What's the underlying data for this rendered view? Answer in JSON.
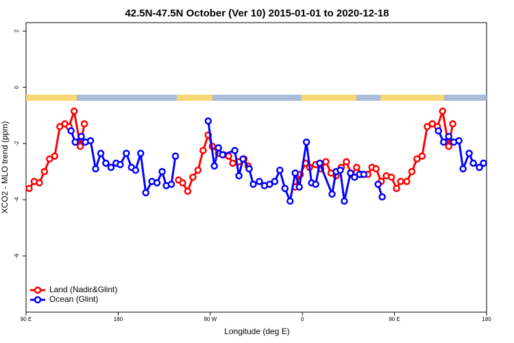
{
  "chart_data": {
    "type": "line",
    "title": "42.5N-47.5N October (Ver 10)   2015-01-01 to 2020-12-18",
    "x_label": "Longitude (deg E)",
    "y_label": "XCO2 - MLO trend (ppm)",
    "xlim": [
      90,
      540
    ],
    "ylim": [
      -8,
      2.3
    ],
    "xticks": [
      {
        "value": 90,
        "label": "90 E"
      },
      180,
      {
        "value": 270,
        "label": "90 W"
      },
      {
        "value": 360,
        "label": "0"
      },
      {
        "value": 450,
        "label": "90 E"
      },
      {
        "value": 540,
        "label": "180"
      }
    ],
    "yticks": [
      2,
      0,
      -2,
      -4,
      -6
    ],
    "legend": "bottom-left",
    "series": [
      {
        "name": "Land (Nadir&Glint)",
        "color": "#ff0000",
        "x": [
          93,
          98,
          103,
          108,
          113,
          118,
          123,
          128,
          132,
          137,
          143,
          147,
          null,
          239,
          243,
          248,
          253,
          258,
          263,
          268,
          272,
          278,
          283,
          288,
          292,
          298,
          303,
          307,
          null,
          353,
          358,
          363,
          367,
          373,
          378,
          383,
          388,
          393,
          398,
          403,
          408,
          413,
          418,
          424,
          428,
          432,
          437,
          442,
          447,
          452,
          456,
          462,
          467,
          472,
          477,
          482,
          487,
          492,
          497,
          503,
          507
        ],
        "values": [
          -3.6,
          -3.35,
          -3.4,
          -3.0,
          -2.55,
          -2.45,
          -1.4,
          -1.3,
          -1.4,
          -0.85,
          -2.1,
          -1.3,
          null,
          -3.3,
          -3.4,
          -3.7,
          -3.2,
          -2.95,
          -2.25,
          -1.7,
          -2.1,
          -2.35,
          -2.4,
          -2.45,
          -2.7,
          -2.65,
          -2.55,
          -2.8,
          null,
          -3.55,
          -3.1,
          -2.7,
          -2.85,
          -2.75,
          -2.9,
          -2.65,
          -3.05,
          -3.15,
          -2.85,
          -2.65,
          -3.1,
          -2.85,
          -3.1,
          -3.1,
          -2.85,
          -2.9,
          -3.35,
          -3.15,
          -3.2,
          -3.6,
          -3.35,
          -3.35,
          -3.0,
          -2.55,
          -2.45,
          -1.4,
          -1.3,
          -1.4,
          -0.85,
          -2.1,
          -1.3
        ]
      },
      {
        "name": "Ocean (Glint)",
        "color": "#0000ff",
        "x": [
          134,
          138,
          144,
          148,
          153,
          158,
          163,
          168,
          173,
          178,
          182,
          188,
          193,
          197,
          202,
          207,
          213,
          218,
          223,
          227,
          232,
          236,
          null,
          268,
          274,
          278,
          282,
          294,
          298,
          302,
          308,
          312,
          318,
          323,
          328,
          333,
          338,
          343,
          348,
          353,
          357,
          364,
          369,
          373,
          377,
          389,
          393,
          397,
          401,
          407,
          411,
          416,
          420,
          null,
          434,
          438,
          null,
          493,
          498,
          503,
          508,
          513,
          517,
          523,
          527,
          533,
          537
        ],
        "values": [
          -1.55,
          -1.95,
          -1.75,
          -1.95,
          -1.9,
          -2.9,
          -2.35,
          -2.7,
          -2.85,
          -2.7,
          -2.75,
          -2.35,
          -2.85,
          -2.95,
          -2.35,
          -3.75,
          -3.35,
          -3.4,
          -3.0,
          -3.5,
          -3.45,
          -2.45,
          null,
          -1.2,
          -2.8,
          -2.15,
          -2.4,
          -2.25,
          -3.15,
          -2.55,
          -2.9,
          -3.45,
          -3.35,
          -3.5,
          -3.45,
          -3.35,
          -2.95,
          -3.6,
          -4.05,
          -3.05,
          -3.55,
          -1.95,
          -3.4,
          -3.45,
          -2.7,
          -3.8,
          -3.0,
          -2.95,
          -4.05,
          -3.05,
          -3.2,
          -3.1,
          -3.1,
          null,
          -3.45,
          -3.9,
          null,
          -1.55,
          -1.95,
          -1.75,
          -1.95,
          -1.9,
          -2.9,
          -2.35,
          -2.7,
          -2.85,
          -2.7
        ]
      }
    ]
  }
}
